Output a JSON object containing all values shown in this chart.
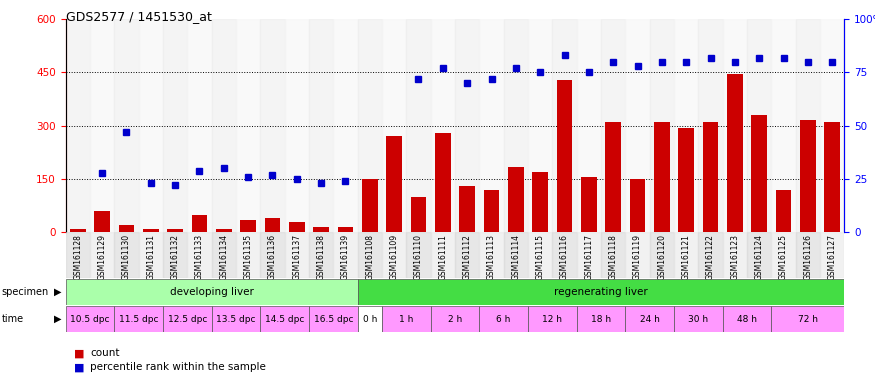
{
  "title": "GDS2577 / 1451530_at",
  "samples": [
    "GSM161128",
    "GSM161129",
    "GSM161130",
    "GSM161131",
    "GSM161132",
    "GSM161133",
    "GSM161134",
    "GSM161135",
    "GSM161136",
    "GSM161137",
    "GSM161138",
    "GSM161139",
    "GSM161108",
    "GSM161109",
    "GSM161110",
    "GSM161111",
    "GSM161112",
    "GSM161113",
    "GSM161114",
    "GSM161115",
    "GSM161116",
    "GSM161117",
    "GSM161118",
    "GSM161119",
    "GSM161120",
    "GSM161121",
    "GSM161122",
    "GSM161123",
    "GSM161124",
    "GSM161125",
    "GSM161126",
    "GSM161127"
  ],
  "counts": [
    10,
    60,
    20,
    10,
    10,
    50,
    10,
    35,
    40,
    30,
    15,
    15,
    150,
    270,
    100,
    280,
    130,
    120,
    185,
    170,
    430,
    155,
    310,
    150,
    310,
    295,
    310,
    445,
    330,
    120,
    315,
    310
  ],
  "percentiles_pct": [
    null,
    28,
    47,
    23,
    22,
    29,
    30,
    26,
    27,
    25,
    23,
    24,
    null,
    null,
    72,
    77,
    70,
    72,
    77,
    75,
    83,
    75,
    80,
    78,
    80,
    80,
    82,
    80,
    82,
    82,
    80,
    80
  ],
  "specimen_groups": [
    {
      "label": "developing liver",
      "color": "#aaffaa",
      "start": 0,
      "end": 12
    },
    {
      "label": "regenerating liver",
      "color": "#44dd44",
      "start": 12,
      "end": 32
    }
  ],
  "time_groups": [
    {
      "label": "10.5 dpc",
      "color": "#ff99ff",
      "start": 0,
      "end": 2
    },
    {
      "label": "11.5 dpc",
      "color": "#ff99ff",
      "start": 2,
      "end": 4
    },
    {
      "label": "12.5 dpc",
      "color": "#ff99ff",
      "start": 4,
      "end": 6
    },
    {
      "label": "13.5 dpc",
      "color": "#ff99ff",
      "start": 6,
      "end": 8
    },
    {
      "label": "14.5 dpc",
      "color": "#ff99ff",
      "start": 8,
      "end": 10
    },
    {
      "label": "16.5 dpc",
      "color": "#ff99ff",
      "start": 10,
      "end": 12
    },
    {
      "label": "0 h",
      "color": "#ffffff",
      "start": 12,
      "end": 13
    },
    {
      "label": "1 h",
      "color": "#ff99ff",
      "start": 13,
      "end": 15
    },
    {
      "label": "2 h",
      "color": "#ff99ff",
      "start": 15,
      "end": 17
    },
    {
      "label": "6 h",
      "color": "#ff99ff",
      "start": 17,
      "end": 19
    },
    {
      "label": "12 h",
      "color": "#ff99ff",
      "start": 19,
      "end": 21
    },
    {
      "label": "18 h",
      "color": "#ff99ff",
      "start": 21,
      "end": 23
    },
    {
      "label": "24 h",
      "color": "#ff99ff",
      "start": 23,
      "end": 25
    },
    {
      "label": "30 h",
      "color": "#ff99ff",
      "start": 25,
      "end": 27
    },
    {
      "label": "48 h",
      "color": "#ff99ff",
      "start": 27,
      "end": 29
    },
    {
      "label": "72 h",
      "color": "#ff99ff",
      "start": 29,
      "end": 32
    }
  ],
  "ylim_left": [
    0,
    600
  ],
  "ylim_right": [
    0,
    100
  ],
  "yticks_left": [
    0,
    150,
    300,
    450,
    600
  ],
  "yticks_right": [
    0,
    25,
    50,
    75,
    100
  ],
  "bar_color": "#cc0000",
  "dot_color": "#0000cc",
  "bg_color": "#ffffff"
}
